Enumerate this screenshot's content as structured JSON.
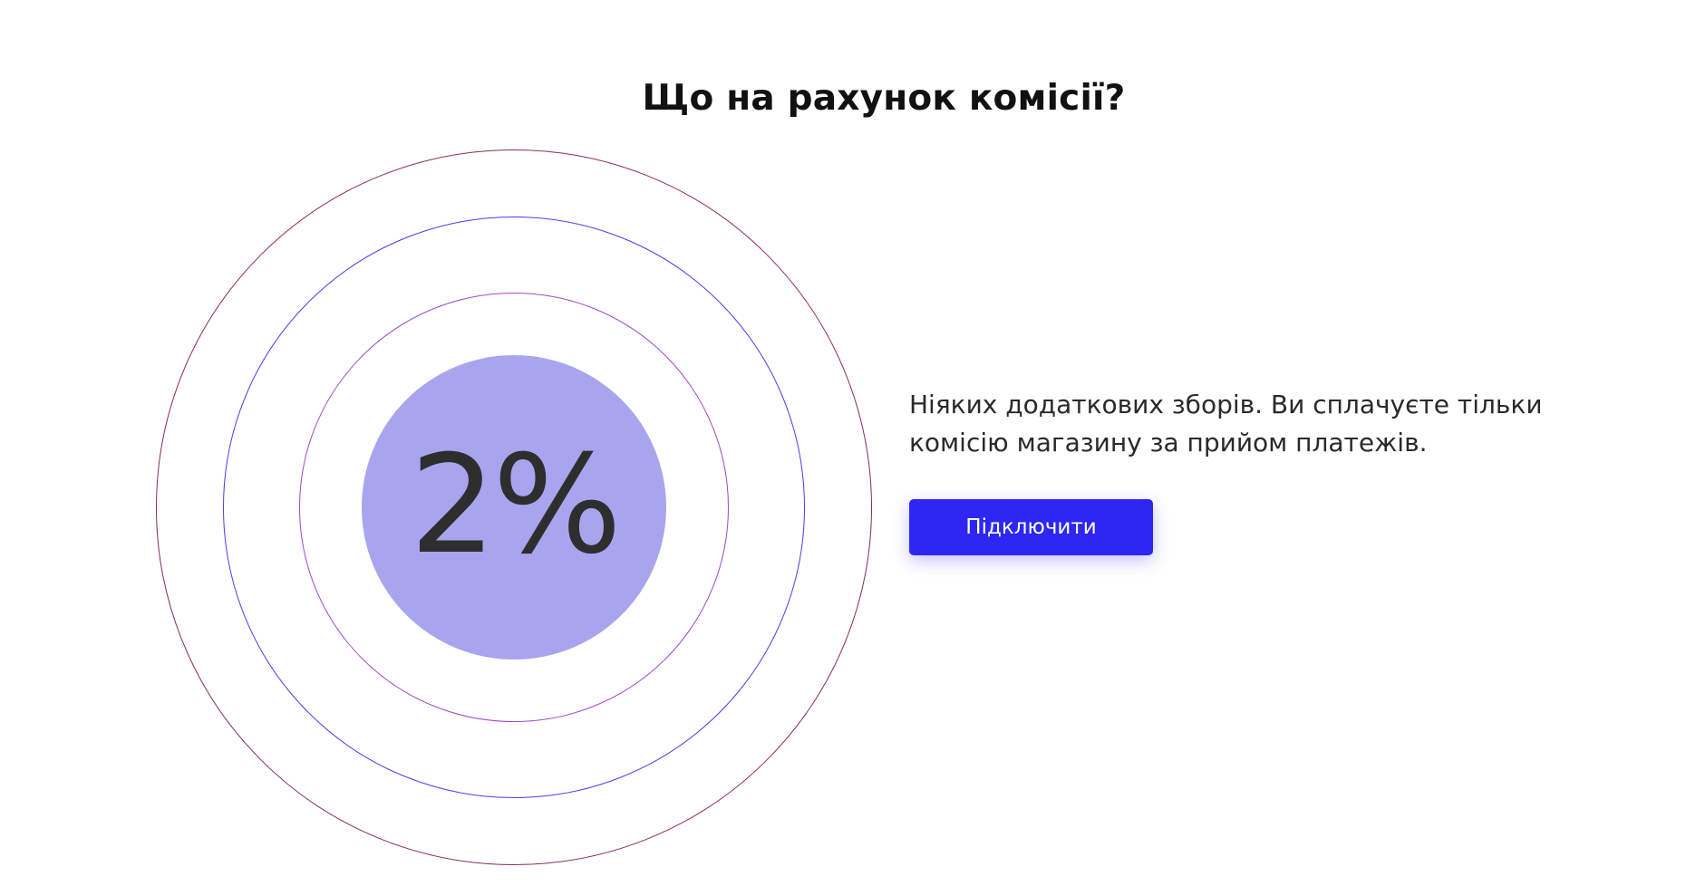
{
  "section": {
    "title": "Що на рахунок комісії?"
  },
  "commission": {
    "value": "2%"
  },
  "content": {
    "description": "Ніяких додаткових зборів. Ви сплачуєте тільки комісію магазину за прийом платежів.",
    "button_label": "Підключити"
  },
  "colors": {
    "accent": "#2e26f2",
    "core_fill": "#a8a5ee",
    "ring_outer": "#8a2a5e",
    "ring_middle": "#4b3cf0",
    "ring_inner": "#a048cc"
  }
}
